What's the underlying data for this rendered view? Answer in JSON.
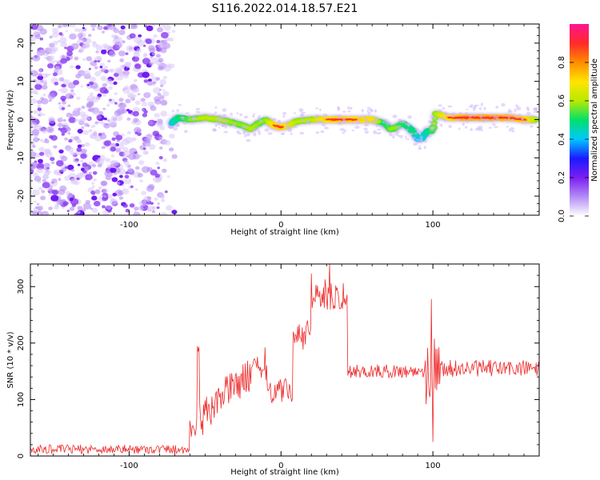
{
  "figure": {
    "title": "S116.2022.014.18.57.E21"
  },
  "chart_data": [
    {
      "type": "heatmap",
      "xlabel": "Height of straight line (km)",
      "ylabel": "Frequency (Hz)",
      "xlim": [
        -165,
        170
      ],
      "ylim": [
        -25,
        25
      ],
      "x_ticks": [
        -100,
        0,
        100
      ],
      "y_ticks": [
        -20,
        -10,
        0,
        10,
        20
      ],
      "grid": false,
      "colorbar": {
        "label": "Normalized spectral amplitude",
        "range": [
          0,
          1
        ],
        "ticks": [
          "0.0",
          "0.2",
          "0.4",
          "0.6",
          "0.8"
        ],
        "colors": [
          "#ffffff",
          "#b38cf5",
          "#7b1ef2",
          "#1a1aff",
          "#00c8ff",
          "#00e06a",
          "#b8ea00",
          "#ffe400",
          "#ff8c00",
          "#ff2a2a",
          "#ff1493"
        ]
      },
      "noise_region": {
        "x_range": [
          -165,
          -70
        ],
        "freq_range": [
          -25,
          25
        ],
        "typical_amplitude": 0.1
      },
      "ridge": {
        "x": [
          -72,
          -68,
          -60,
          -50,
          -40,
          -30,
          -25,
          -20,
          -15,
          -10,
          -5,
          0,
          5,
          10,
          20,
          30,
          40,
          50,
          60,
          68,
          72,
          76,
          80,
          84,
          88,
          90,
          93,
          96,
          99,
          100,
          102,
          110,
          120,
          130,
          140,
          150,
          160,
          168
        ],
        "freq": [
          -1,
          0.5,
          0,
          0.5,
          0,
          -1,
          -1.5,
          -2.5,
          -1,
          0,
          -1.5,
          -2,
          -1.5,
          -0.5,
          0,
          0,
          0,
          0,
          0,
          -1,
          -2.5,
          -2,
          -1,
          -2,
          -3.5,
          -5,
          -5,
          -3,
          -3,
          -2.5,
          1.5,
          0.5,
          0.5,
          0.5,
          0.5,
          0.5,
          0,
          0
        ],
        "amplitude": [
          0.35,
          0.45,
          0.55,
          0.6,
          0.6,
          0.55,
          0.55,
          0.6,
          0.55,
          0.55,
          0.8,
          0.85,
          0.7,
          0.6,
          0.6,
          0.8,
          0.85,
          0.8,
          0.75,
          0.45,
          0.55,
          0.55,
          0.5,
          0.45,
          0.45,
          0.3,
          0.35,
          0.4,
          0.5,
          0.55,
          0.6,
          0.8,
          0.9,
          0.9,
          0.9,
          0.88,
          0.85,
          0.6
        ]
      }
    },
    {
      "type": "line",
      "xlabel": "Height of straight line (km)",
      "ylabel": "SNR (10 * v/v)",
      "xlim": [
        -165,
        170
      ],
      "ylim": [
        0,
        340
      ],
      "x_ticks": [
        -100,
        0,
        100
      ],
      "y_ticks": [
        0,
        100,
        200,
        300
      ],
      "grid": false,
      "color": "#ee2a2a",
      "series_description": "noisy trace, sampled every 0.5 km; values are baseline levels, fine noise added by renderer",
      "segments": [
        {
          "x": [
            -165,
            -60
          ],
          "baseline": 12,
          "noise": 8
        },
        {
          "x": [
            -60,
            -55
          ],
          "baseline": 50,
          "noise": 20
        },
        {
          "x": [
            -55,
            -54
          ],
          "baseline": 190,
          "noise": 5
        },
        {
          "x": [
            -54,
            -40
          ],
          "baseline": 80,
          "noise": 30
        },
        {
          "x": [
            -40,
            -25
          ],
          "baseline": 120,
          "noise": 30
        },
        {
          "x": [
            -25,
            -10
          ],
          "baseline": 150,
          "noise": 30
        },
        {
          "x": [
            -10,
            8
          ],
          "baseline": 115,
          "noise": 22
        },
        {
          "x": [
            8,
            20
          ],
          "baseline": 210,
          "noise": 25
        },
        {
          "x": [
            20,
            44
          ],
          "baseline": 285,
          "noise": 28
        },
        {
          "x": [
            44,
            95
          ],
          "baseline": 150,
          "noise": 12
        },
        {
          "x": [
            95,
            105
          ],
          "baseline": 150,
          "noise": 60
        },
        {
          "x": [
            105,
            170
          ],
          "baseline": 155,
          "noise": 15
        }
      ],
      "peaks": [
        {
          "x": -54,
          "y": 193
        },
        {
          "x": 32,
          "y": 340
        },
        {
          "x": 99,
          "y": 278
        },
        {
          "x": 100,
          "y": 25
        }
      ]
    }
  ]
}
